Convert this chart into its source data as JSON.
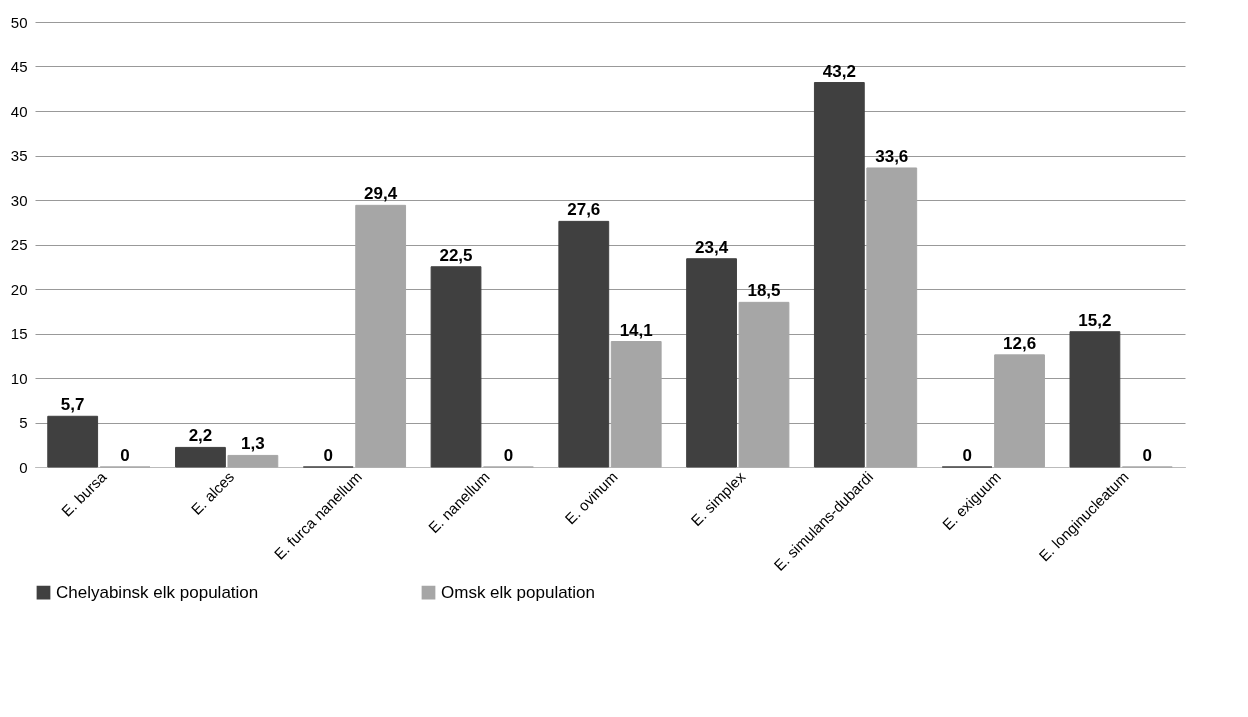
{
  "chart_data": {
    "type": "bar",
    "categories": [
      "E. bursa",
      "E. alces",
      "E. furca nanellum",
      "E. nanellum",
      "E. ovinum",
      "E. simplex",
      "E. simulans-dubardi",
      "E. exiguum",
      "E. longinucleatum"
    ],
    "series": [
      {
        "name": "Chelyabinsk elk population",
        "color": "#404040",
        "values": [
          5.7,
          2.2,
          0,
          22.5,
          27.6,
          23.4,
          43.2,
          0,
          15.2
        ],
        "value_labels": [
          "5,7",
          "2,2",
          "0",
          "22,5",
          "27,6",
          "23,4",
          "43,2",
          "0",
          "15,2"
        ]
      },
      {
        "name": "Omsk elk population",
        "color": "#a6a6a6",
        "values": [
          0,
          1.3,
          29.4,
          0,
          14.1,
          18.5,
          33.6,
          12.6,
          0
        ],
        "value_labels": [
          "0",
          "1,3",
          "29,4",
          "0",
          "14,1",
          "18,5",
          "33,6",
          "12,6",
          "0"
        ]
      }
    ],
    "ylim": [
      0,
      50
    ],
    "yticks": [
      0,
      5,
      10,
      15,
      20,
      25,
      30,
      35,
      40,
      45,
      50
    ],
    "grid": "y",
    "legend": "bottom"
  }
}
